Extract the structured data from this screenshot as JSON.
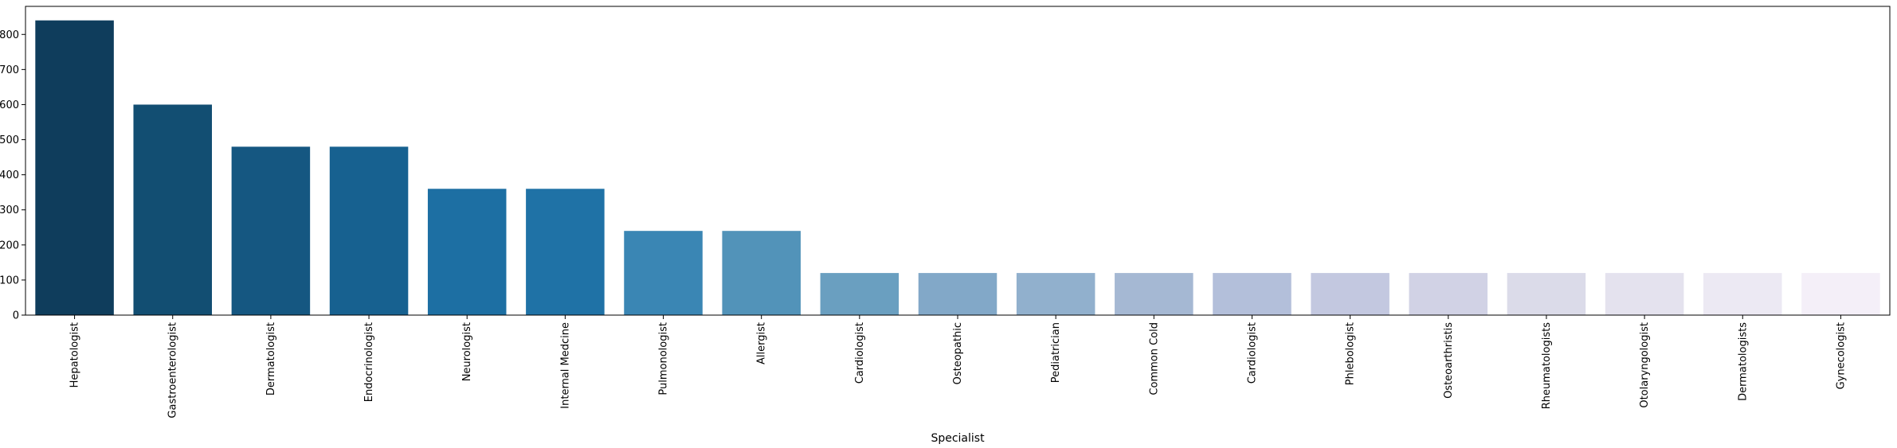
{
  "chart_data": {
    "type": "bar",
    "xlabel": "Specialist",
    "ylabel": "",
    "ylim": [
      0,
      880
    ],
    "yticks": [
      0,
      100,
      200,
      300,
      400,
      500,
      600,
      700,
      800
    ],
    "grid": false,
    "categories": [
      "Hepatologist",
      "Gastroenterologist",
      "Dermatologist",
      "Endocrinologist",
      "Neurologist",
      "Internal Medcine",
      "Pulmonologist",
      "Allergist",
      "Cardiologist",
      "Osteopathic",
      "Pediatrician",
      "Common Cold",
      "Cardiologist",
      "Phlebologist",
      "Osteoarthristis",
      "Rheumatologists",
      "Otolaryngologist",
      "Dermatologists",
      "Gynecologist"
    ],
    "values": [
      840,
      600,
      480,
      480,
      360,
      360,
      240,
      240,
      120,
      120,
      120,
      120,
      120,
      120,
      120,
      120,
      120,
      120,
      120
    ],
    "colors": [
      "#0f3d5c",
      "#124e72",
      "#155781",
      "#176190",
      "#1d6fa3",
      "#1f72a6",
      "#3a86b4",
      "#5293b9",
      "#6a9fc0",
      "#82a8c8",
      "#91b0cd",
      "#a5b8d3",
      "#b3bfda",
      "#c3c8e0",
      "#d1d2e5",
      "#dbdbe9",
      "#e4e2ee",
      "#ece9f3",
      "#f4eff8"
    ]
  }
}
